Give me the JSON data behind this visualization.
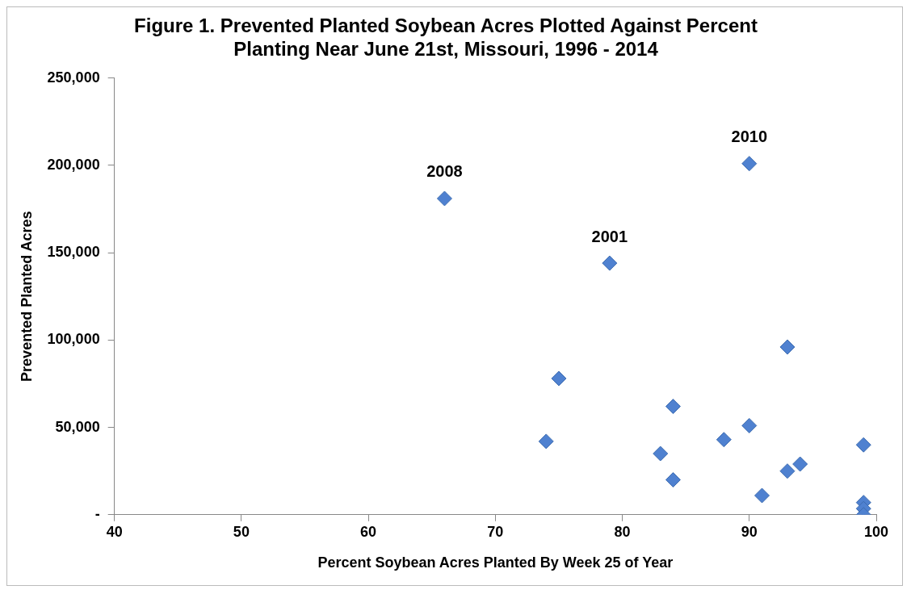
{
  "chart_data": {
    "type": "scatter",
    "title": "Figure 1. Prevented Planted Soybean Acres Plotted Against Percent\nPlanting Near June 21st, Missouri, 1996 - 2014",
    "xlabel": "Percent Soybean Acres Planted By Week 25 of Year",
    "ylabel": "Prevented Planted Acres",
    "x": [
      66,
      90,
      79,
      75,
      74,
      84,
      83,
      84,
      88,
      90,
      93,
      91,
      93,
      94,
      99,
      99,
      99,
      99
    ],
    "series": [
      {
        "color": "#4f81d0",
        "values": [
          181000,
          201000,
          144000,
          78000,
          42000,
          62000,
          35000,
          20000,
          43000,
          51000,
          96000,
          11000,
          25000,
          29000,
          40000,
          7000,
          3500,
          0
        ]
      }
    ],
    "xlim": [
      40,
      100
    ],
    "xticks": [
      40,
      50,
      60,
      70,
      80,
      90,
      100
    ],
    "ylim": [
      0,
      250000
    ],
    "yticks": [
      {
        "value": 0,
        "label": "-"
      },
      {
        "value": 50000,
        "label": "50,000"
      },
      {
        "value": 100000,
        "label": "100,000"
      },
      {
        "value": 150000,
        "label": "150,000"
      },
      {
        "value": 200000,
        "label": "200,000"
      },
      {
        "value": 250000,
        "label": "250,000"
      }
    ],
    "grid": false,
    "legend": false,
    "marker": "diamond",
    "annotations": [
      {
        "text": "2008",
        "x": 66,
        "y": 181000
      },
      {
        "text": "2010",
        "x": 90,
        "y": 201000
      },
      {
        "text": "2001",
        "x": 79,
        "y": 144000
      }
    ]
  }
}
